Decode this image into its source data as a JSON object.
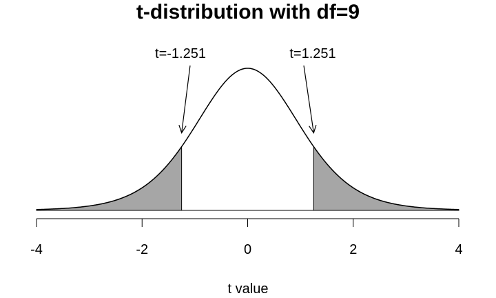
{
  "chart_data": {
    "type": "area",
    "title": "t-distribution with df=9",
    "xlabel": "t value",
    "ylabel": "",
    "df": 9,
    "xlim": [
      -4,
      4
    ],
    "x_ticks": [
      -4,
      -2,
      0,
      2,
      4
    ],
    "tick_labels": [
      "-4",
      "-2",
      "0",
      "2",
      "4"
    ],
    "shaded_regions": [
      {
        "from": -4,
        "to": -1.251
      },
      {
        "from": 1.251,
        "to": 4
      }
    ],
    "annotations": [
      {
        "text": "t=-1.251",
        "x": -1.251
      },
      {
        "text": "t=1.251",
        "x": 1.251
      }
    ],
    "fill_color": "#a6a6a6",
    "line_color": "#000000",
    "grid": false,
    "legend": "none"
  }
}
